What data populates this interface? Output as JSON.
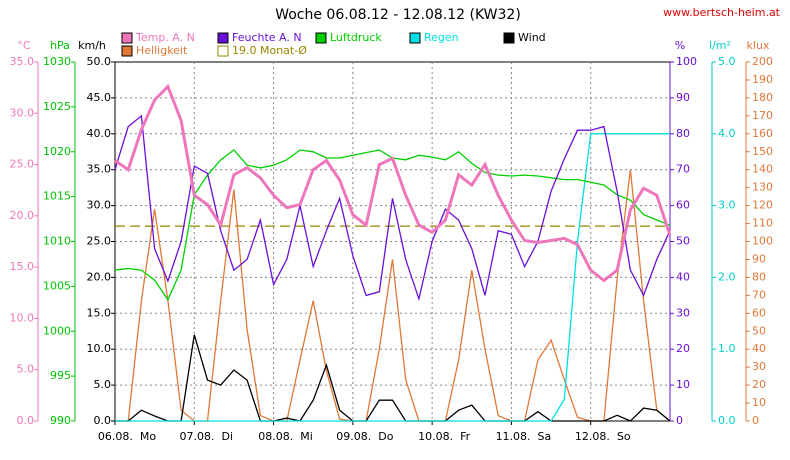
{
  "chart_data": {
    "type": "line",
    "title": "Woche 06.08.12 - 12.08.12 (KW32)",
    "source": "www.bertsch-heim.at",
    "x": [
      0,
      4,
      8,
      12,
      16,
      20,
      24,
      28,
      32,
      36,
      40,
      44,
      48,
      52,
      56,
      60,
      64,
      68,
      72,
      76,
      80,
      84,
      88,
      92,
      96,
      100,
      104,
      108,
      112,
      116,
      120,
      124,
      128,
      132,
      136,
      140,
      144,
      148,
      152,
      156,
      160,
      164,
      168
    ],
    "xlim": [
      0,
      168
    ],
    "xticks": [
      {
        "value": 0,
        "label": "06.08.  Mo"
      },
      {
        "value": 24,
        "label": "07.08.  Di"
      },
      {
        "value": 48,
        "label": "08.08.  Mi"
      },
      {
        "value": 72,
        "label": "09.08.  Do"
      },
      {
        "value": 96,
        "label": "10.08.  Fr"
      },
      {
        "value": 120,
        "label": "11.08.  Sa"
      },
      {
        "value": 144,
        "label": "12.08.  So"
      }
    ],
    "grid": true,
    "axes": [
      {
        "id": "temp",
        "label": "°C",
        "side": "left",
        "color": "#ee77bb",
        "lim": [
          0,
          35
        ],
        "ticks": [
          {
            "value": 0,
            "label": "0.0"
          },
          {
            "value": 5,
            "label": "5.0"
          },
          {
            "value": 10,
            "label": "10.0"
          },
          {
            "value": 15,
            "label": "15.0"
          },
          {
            "value": 20,
            "label": "20.0"
          },
          {
            "value": 25,
            "label": "25.0"
          },
          {
            "value": 30,
            "label": "30.0"
          },
          {
            "value": 35,
            "label": "35.0"
          }
        ]
      },
      {
        "id": "press",
        "label": "hPa",
        "side": "left",
        "color": "#00c000",
        "lim": [
          990,
          1030
        ],
        "ticks": [
          990,
          995,
          1000,
          1005,
          1010,
          1015,
          1020,
          1025,
          1030
        ]
      },
      {
        "id": "wind",
        "label": "km/h",
        "side": "left",
        "color": "#000000",
        "lim": [
          0,
          50
        ],
        "ticks": [
          {
            "value": 0,
            "label": "0.0"
          },
          {
            "value": 5,
            "label": "5.0"
          },
          {
            "value": 10,
            "label": "10.0"
          },
          {
            "value": 15,
            "label": "15.0"
          },
          {
            "value": 20,
            "label": "20.0"
          },
          {
            "value": 25,
            "label": "25.0"
          },
          {
            "value": 30,
            "label": "30.0"
          },
          {
            "value": 35,
            "label": "35.0"
          },
          {
            "value": 40,
            "label": "40.0"
          },
          {
            "value": 45,
            "label": "45.0"
          },
          {
            "value": 50,
            "label": "50.0"
          }
        ]
      },
      {
        "id": "hum",
        "label": "%",
        "side": "right",
        "color": "#6a10d8",
        "lim": [
          0,
          100
        ],
        "ticks": [
          0,
          10,
          20,
          30,
          40,
          50,
          60,
          70,
          80,
          90,
          100
        ]
      },
      {
        "id": "rain",
        "label": "l/m²",
        "side": "right",
        "color": "#00cccc",
        "lim": [
          0,
          5
        ],
        "ticks": [
          {
            "value": 0,
            "label": "0.0"
          },
          {
            "value": 1,
            "label": "1.0"
          },
          {
            "value": 2,
            "label": "2.0"
          },
          {
            "value": 3,
            "label": "3.0"
          },
          {
            "value": 4,
            "label": "4.0"
          },
          {
            "value": 5,
            "label": "5.0"
          }
        ]
      },
      {
        "id": "lux",
        "label": "klux",
        "side": "right",
        "color": "#e07838",
        "lim": [
          0,
          200
        ],
        "ticks": [
          0,
          10,
          20,
          30,
          40,
          50,
          60,
          70,
          80,
          90,
          100,
          110,
          120,
          130,
          140,
          150,
          160,
          170,
          180,
          190,
          200
        ]
      }
    ],
    "series": [
      {
        "name": "Helligkeit",
        "color": "#e07838",
        "axis": "lux",
        "values": [
          0,
          0,
          67,
          118,
          67,
          6,
          0,
          0,
          67,
          129,
          51,
          3,
          0,
          0,
          34,
          67,
          28,
          1,
          0,
          0,
          40,
          90,
          23,
          0,
          0,
          0,
          34,
          84,
          40,
          3,
          0,
          0,
          34,
          45,
          23,
          2,
          0,
          0,
          79,
          140,
          67,
          6,
          0
        ]
      },
      {
        "name": "Wind",
        "color": "#000000",
        "axis": "wind",
        "values": [
          0,
          0,
          1.5,
          0.7,
          0,
          0,
          12.0,
          5.7,
          5.0,
          7.1,
          5.7,
          0,
          0,
          0.4,
          0,
          2.9,
          7.8,
          1.5,
          0,
          0,
          2.9,
          2.9,
          0,
          0,
          0,
          0,
          1.5,
          2.2,
          0,
          0,
          0,
          0,
          1.3,
          0,
          0,
          0,
          0,
          0,
          0.8,
          0,
          1.8,
          1.5,
          0
        ]
      },
      {
        "name": "Regen",
        "color": "#00e0e0",
        "axis": "rain",
        "values": [
          0,
          0,
          0,
          0,
          0,
          0,
          0,
          0,
          0,
          0,
          0,
          0,
          0,
          0,
          0,
          0,
          0,
          0,
          0,
          0,
          0,
          0,
          0,
          0,
          0,
          0,
          0,
          0,
          0,
          0,
          0,
          0,
          0,
          0,
          0.3,
          2.5,
          4.0,
          4.0,
          4.0,
          4.0,
          4.0,
          4.0,
          4.0
        ]
      },
      {
        "name": "Luftdruck",
        "color": "#00d000",
        "axis": "press",
        "values": [
          1006.8,
          1007.0,
          1006.8,
          1005.7,
          1003.5,
          1006.8,
          1015.2,
          1017.4,
          1019.1,
          1020.2,
          1018.5,
          1018.2,
          1018.5,
          1019.1,
          1020.2,
          1020.0,
          1019.3,
          1019.3,
          1019.6,
          1019.9,
          1020.2,
          1019.3,
          1019.1,
          1019.6,
          1019.4,
          1019.1,
          1020.0,
          1018.7,
          1017.7,
          1017.4,
          1017.3,
          1017.4,
          1017.3,
          1017.1,
          1016.9,
          1016.9,
          1016.6,
          1016.3,
          1015.2,
          1014.6,
          1013.0,
          1012.4,
          1011.8
        ]
      },
      {
        "name": "Feuchte A. N",
        "color": "#6a10d8",
        "axis": "hum",
        "values": [
          70,
          82,
          85,
          48,
          39,
          50,
          71,
          69,
          53,
          42,
          45,
          56,
          38,
          45,
          60,
          43,
          53,
          62,
          46,
          35,
          36,
          62,
          45,
          34,
          50,
          59,
          56,
          48,
          35,
          53,
          52,
          43,
          50,
          64,
          73,
          81,
          81,
          82,
          64,
          42,
          35,
          45,
          53
        ]
      },
      {
        "name": "Temp. A. N",
        "color": "#ee77bb",
        "axis": "temp",
        "values": [
          25.4,
          24.5,
          28.4,
          31.3,
          32.6,
          29.3,
          22.0,
          21.1,
          19.1,
          24.0,
          24.7,
          23.7,
          22.0,
          20.8,
          21.1,
          24.5,
          25.4,
          23.5,
          20.1,
          19.1,
          25.0,
          25.6,
          22.0,
          19.1,
          18.4,
          19.6,
          24.0,
          23.0,
          25.0,
          22.0,
          19.6,
          17.6,
          17.4,
          17.6,
          17.8,
          17.2,
          14.7,
          13.7,
          14.7,
          20.6,
          22.7,
          22.0,
          18.1
        ]
      }
    ],
    "reference_line": {
      "name": "19.0 Monat-Ø",
      "value": 19,
      "axis": "temp",
      "color": "#9a8600"
    },
    "legend": [
      [
        "Temp. A. N",
        "Feuchte A. N",
        "Luftdruck",
        "Regen",
        "Wind"
      ],
      [
        "Helligkeit",
        "19.0 Monat-Ø"
      ]
    ]
  }
}
